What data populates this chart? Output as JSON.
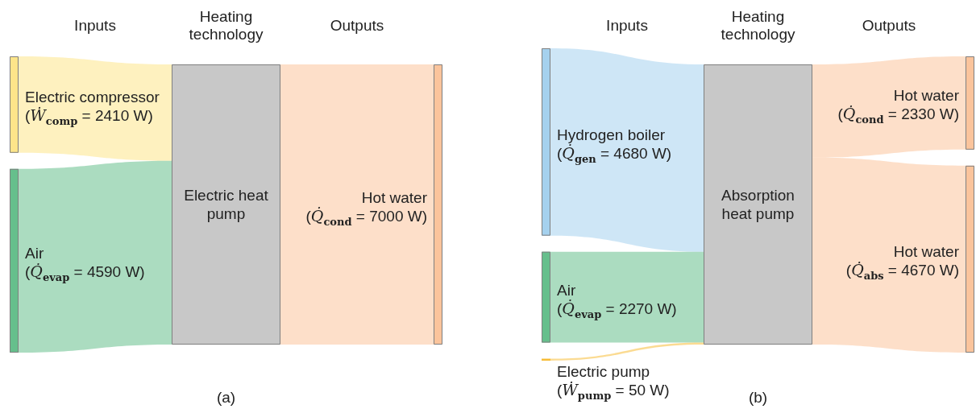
{
  "chart_data": [
    {
      "type": "other",
      "categories": [
        "Inputs",
        "Heating technology",
        "Outputs"
      ],
      "series": [
        {
          "name": "Electric compressor",
          "color": "#fde58a",
          "values": [
            2410,
            null,
            null
          ],
          "value_labels": [
            "(Ẇ$_{comp}$ = 2410 W)",
            null,
            null
          ]
        },
        {
          "name": "Air",
          "color": "#66bf8c",
          "values": [
            4590,
            null,
            null
          ],
          "value_labels": [
            "(Q̇$_{evap}$ = 4590 W)",
            null,
            null
          ]
        },
        {
          "name": "Electric heat pump",
          "values": [
            null,
            null,
            null
          ]
        },
        {
          "name": "Hot water",
          "color": "#fbc49c",
          "values": [
            null,
            null,
            7000
          ],
          "value_labels": [
            null,
            null,
            "(Q̇$_{cond}$ = 7000 W)"
          ]
        }
      ],
      "annotations": [
        "(a)"
      ]
    },
    {
      "type": "other",
      "categories": [
        "Inputs",
        "Heating technology",
        "Outputs"
      ],
      "series": [
        {
          "name": "Hydrogen boiler",
          "color": "#a5d1ee",
          "values": [
            4680,
            null,
            null
          ],
          "value_labels": [
            "(Q̇$_{gen}$ = 4680 W)",
            null,
            null
          ]
        },
        {
          "name": "Air",
          "color": "#66bf8c",
          "values": [
            2270,
            null,
            null
          ],
          "value_labels": [
            "(Q̇$_{evap}$ = 2270 W)",
            null,
            null
          ]
        },
        {
          "name": "Electric pump",
          "color": "#f7bd38",
          "values": [
            50,
            null,
            null
          ],
          "value_labels": [
            "(Ẇ$_{pump}$ = 50 W)",
            null,
            null
          ]
        },
        {
          "name": "Absorption heat pump",
          "values": [
            null,
            null,
            null
          ]
        },
        {
          "name": "Hot water",
          "color": "#fbc49c",
          "values": [
            null,
            null,
            2330
          ],
          "value_labels": [
            null,
            null,
            "(Q̇$_{cond}$ = 2330 W)"
          ]
        },
        {
          "name": "Hot water",
          "color": "#fbc49c",
          "values": [
            null,
            null,
            4670
          ],
          "value_labels": [
            null,
            null,
            "(Q̇$_{abs}$ = 4670 W)"
          ]
        }
      ],
      "annotations": [
        "(b)"
      ]
    }
  ]
}
